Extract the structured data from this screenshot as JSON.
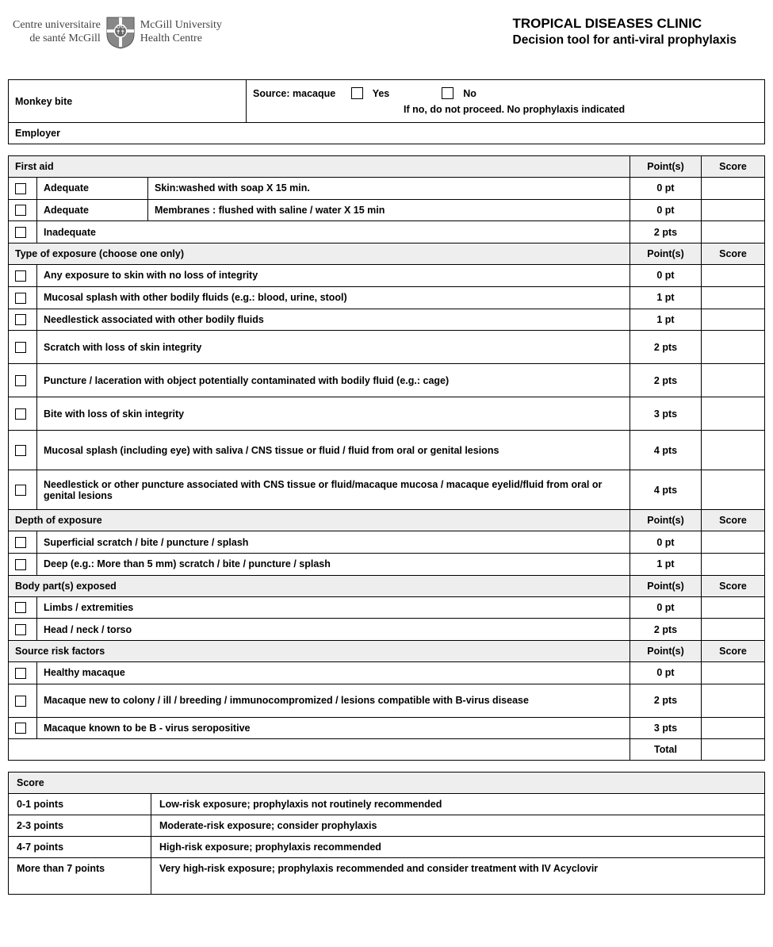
{
  "logo": {
    "left_line1": "Centre universitaire",
    "left_line2": "de santé McGill",
    "right_line1": "McGill University",
    "right_line2": "Health Centre"
  },
  "title": {
    "line1": "TROPICAL DISEASES CLINIC",
    "line2": "Decision tool for anti-viral prophylaxis"
  },
  "intro": {
    "monkey_bite": "Monkey bite",
    "source_label": "Source: macaque",
    "yes": "Yes",
    "no": "No",
    "no_note": "If no, do not proceed.  No prophylaxis indicated",
    "employer": "Employer"
  },
  "columns": {
    "points": "Point(s)",
    "score": "Score",
    "total": "Total"
  },
  "sections": [
    {
      "title": "First aid",
      "rows": [
        {
          "label": "Adequate",
          "extra": "Skin:washed with soap X 15 min.",
          "points": "0 pt",
          "split": true
        },
        {
          "label": "Adequate",
          "extra": "Membranes : flushed with saline / water X 15 min",
          "points": "0 pt",
          "split": true
        },
        {
          "label": "Inadequate",
          "points": "2 pts"
        }
      ]
    },
    {
      "title": "Type of exposure (choose one only)",
      "rows": [
        {
          "label": "Any exposure to skin with no loss of integrity",
          "points": "0 pt"
        },
        {
          "label": "Mucosal splash with other bodily fluids (e.g.: blood, urine, stool)",
          "points": "1 pt"
        },
        {
          "label": "Needlestick associated with other bodily fluids",
          "points": "1 pt"
        },
        {
          "label": "Scratch with loss of skin integrity",
          "points": "2 pts",
          "tall": true
        },
        {
          "label": "Puncture / laceration with object potentially contaminated with bodily fluid (e.g.: cage)",
          "points": "2 pts",
          "tall": true
        },
        {
          "label": "Bite with loss of skin integrity",
          "points": "3 pts",
          "tall": true
        },
        {
          "label": "Mucosal splash (including eye) with saliva / CNS tissue or fluid / fluid from oral or genital lesions",
          "points": "4 pts",
          "taller": true
        },
        {
          "label": "Needlestick or other puncture associated with CNS tissue or fluid/macaque mucosa / macaque eyelid/fluid from oral or genital lesions",
          "points": "4 pts",
          "taller": true
        }
      ]
    },
    {
      "title": "Depth of exposure",
      "rows": [
        {
          "label": "Superficial scratch / bite / puncture / splash",
          "points": "0 pt"
        },
        {
          "label": "Deep (e.g.: More than 5 mm) scratch / bite / puncture / splash",
          "points": "1 pt"
        }
      ]
    },
    {
      "title": "Body part(s) exposed",
      "rows": [
        {
          "label": "Limbs / extremities",
          "points": "0 pt"
        },
        {
          "label": "Head / neck / torso",
          "points": "2 pts"
        }
      ]
    },
    {
      "title": "Source risk factors",
      "rows": [
        {
          "label": "Healthy macaque",
          "points": "0 pt"
        },
        {
          "label": "Macaque new to colony / ill / breeding / immunocompromized / lesions compatible with B-virus disease",
          "points": "2 pts",
          "tall": true
        },
        {
          "label": "Macaque known to be B - virus seropositive",
          "points": "3 pts"
        }
      ]
    }
  ],
  "legend": {
    "header": "Score",
    "rows": [
      {
        "range": "0-1 points",
        "desc": "Low-risk exposure; prophylaxis not routinely recommended"
      },
      {
        "range": "2-3 points",
        "desc": "Moderate-risk exposure; consider prophylaxis"
      },
      {
        "range": "4-7 points",
        "desc": "High-risk exposure; prophylaxis recommended"
      },
      {
        "range": "More than 7 points",
        "desc": "Very high-risk exposure; prophylaxis recommended and consider treatment with IV Acyclovir"
      }
    ]
  }
}
